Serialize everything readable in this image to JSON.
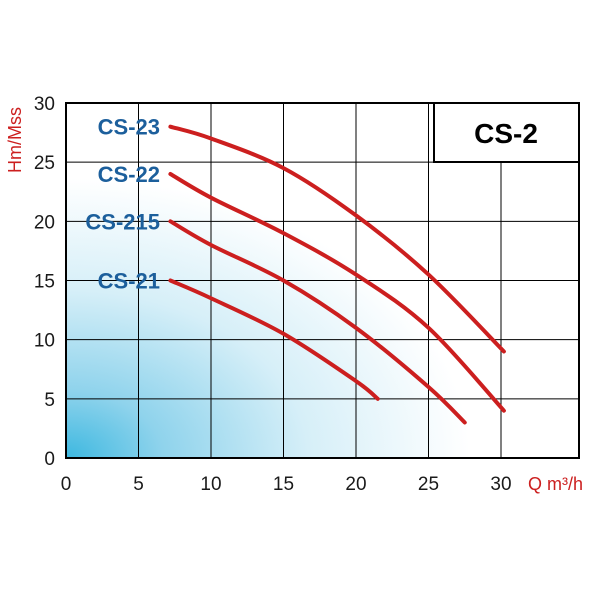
{
  "chart_data": {
    "type": "line",
    "title": "CS-2",
    "xlabel": "Q m³/h",
    "ylabel": "Hm/Mss",
    "xlim": [
      0,
      35
    ],
    "ylim": [
      0,
      30
    ],
    "x_ticks": [
      "0",
      "5",
      "10",
      "15",
      "20",
      "25",
      "30"
    ],
    "y_ticks": [
      "0",
      "5",
      "10",
      "15",
      "20",
      "25",
      "30"
    ],
    "grid": true,
    "series": [
      {
        "name": "CS-23",
        "x": [
          7.2,
          10,
          15,
          20,
          25,
          30.2
        ],
        "y": [
          28,
          27,
          24.5,
          20.5,
          15.5,
          9
        ]
      },
      {
        "name": "CS-22",
        "x": [
          7.2,
          10,
          15,
          20,
          25,
          30.2
        ],
        "y": [
          24,
          22,
          19,
          15.5,
          11,
          4
        ]
      },
      {
        "name": "CS-215",
        "x": [
          7.2,
          10,
          15,
          20,
          25,
          27.5
        ],
        "y": [
          20,
          18,
          15,
          11,
          6,
          3
        ]
      },
      {
        "name": "CS-21",
        "x": [
          7.2,
          10,
          15,
          20,
          21.5
        ],
        "y": [
          15,
          13.5,
          10.5,
          6.5,
          5
        ]
      }
    ]
  },
  "colors": {
    "curve": "#cc1f1f",
    "series_label": "#1c5f9c",
    "axis_label": "#cc1f1f",
    "grid": "#000000",
    "gradient_start": "#3db8e0",
    "gradient_end": "#ffffff"
  }
}
